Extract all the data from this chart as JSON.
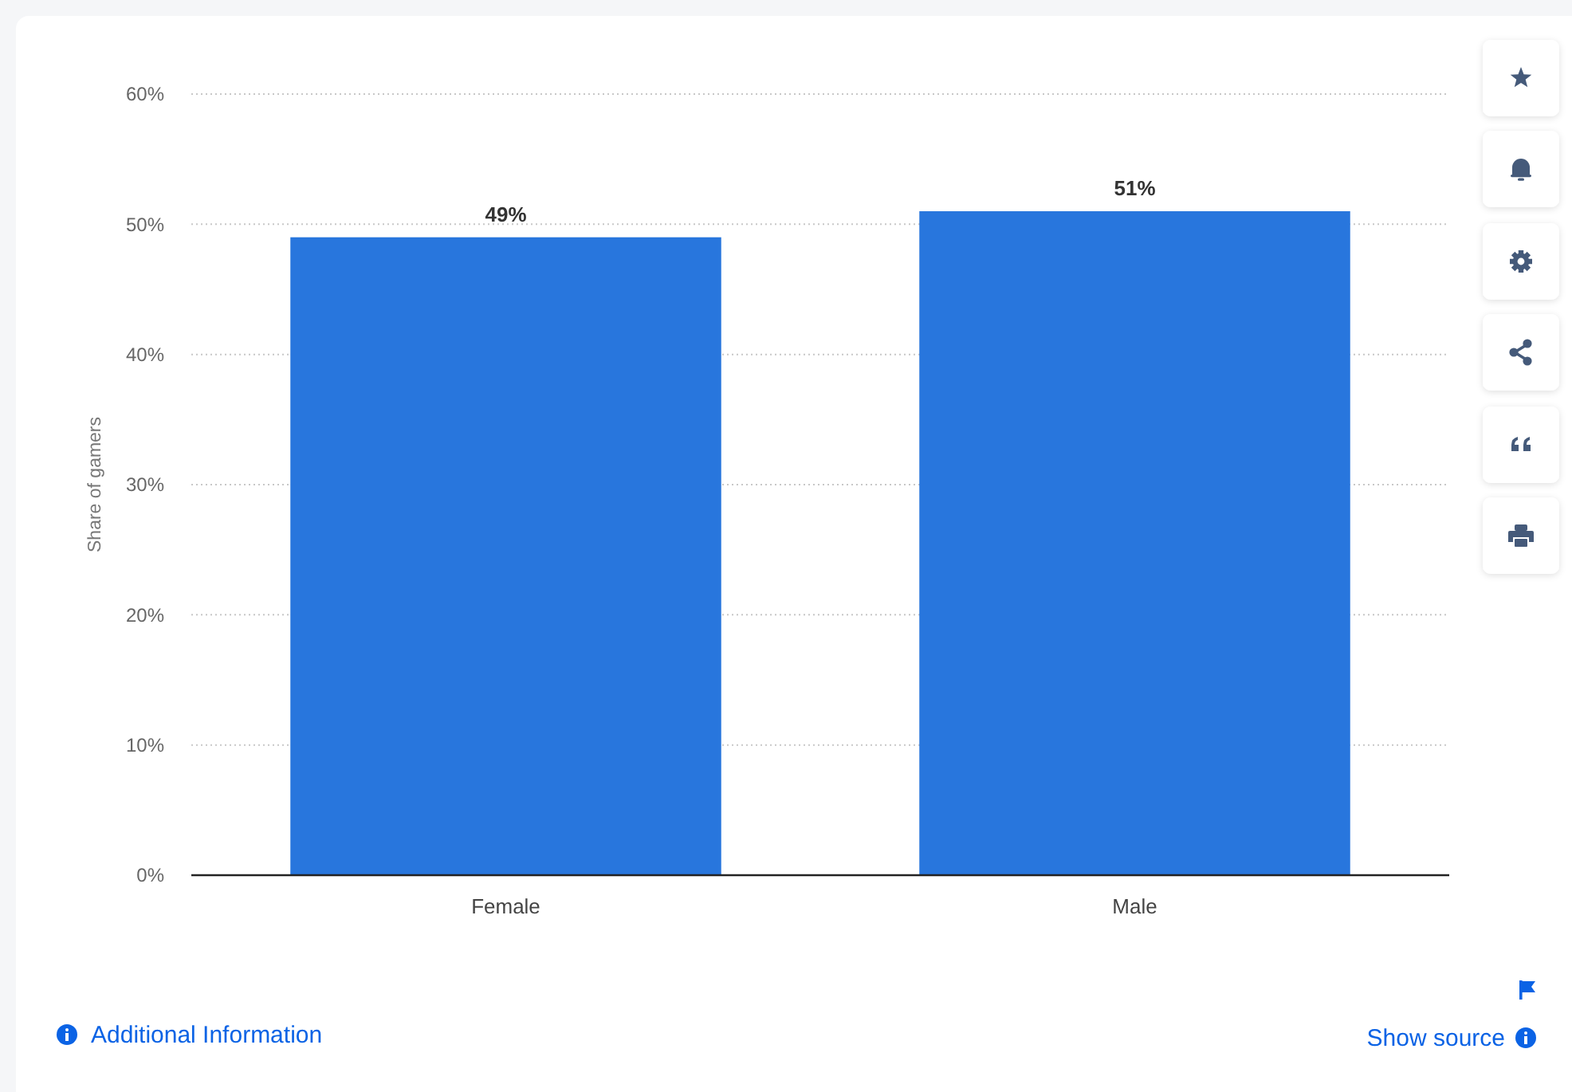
{
  "chart_data": {
    "type": "bar",
    "ylabel": "Share of gamers",
    "categories": [
      "Female",
      "Male"
    ],
    "values": [
      49,
      51
    ],
    "color": "#2876dd",
    "value_labels": [
      "49%",
      "51%"
    ],
    "ylim": [
      0,
      60
    ],
    "yticks": [
      {
        "value": 0,
        "label": "0%"
      },
      {
        "value": 10,
        "label": "10%"
      },
      {
        "value": 20,
        "label": "20%"
      },
      {
        "value": 30,
        "label": "30%"
      },
      {
        "value": 40,
        "label": "40%"
      },
      {
        "value": 50,
        "label": "50%"
      },
      {
        "value": 60,
        "label": "60%"
      }
    ],
    "grid": "y",
    "annotations": [
      "Additional Information",
      "Show source"
    ]
  }
}
